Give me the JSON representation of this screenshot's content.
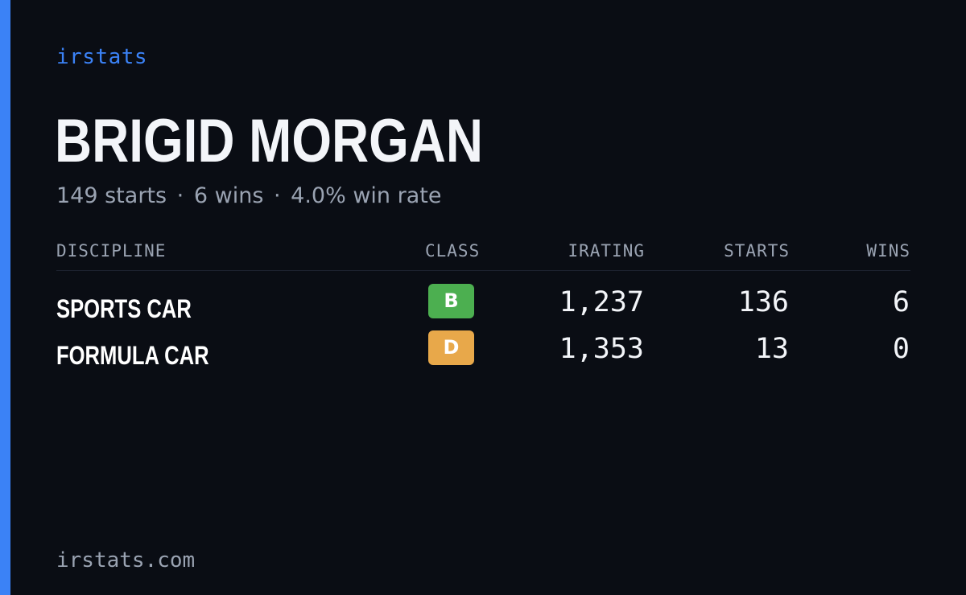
{
  "brand": "irstats",
  "driver": {
    "name": "BRIGID MORGAN"
  },
  "summary": {
    "starts": "149 starts",
    "wins": "6 wins",
    "win_rate": "4.0% win rate",
    "separator": "·"
  },
  "table": {
    "headers": {
      "discipline": "DISCIPLINE",
      "class": "CLASS",
      "irating": "IRATING",
      "starts": "STARTS",
      "wins": "WINS"
    },
    "rows": [
      {
        "discipline": "SPORTS CAR",
        "class": "B",
        "class_color": "#4caf50",
        "irating": "1,237",
        "starts": "136",
        "wins": "6"
      },
      {
        "discipline": "FORMULA CAR",
        "class": "D",
        "class_color": "#e8a84a",
        "irating": "1,353",
        "starts": "13",
        "wins": "0"
      }
    ]
  },
  "footer": "irstats.com",
  "colors": {
    "accent": "#3b82f6",
    "background": "#0a0d14"
  }
}
